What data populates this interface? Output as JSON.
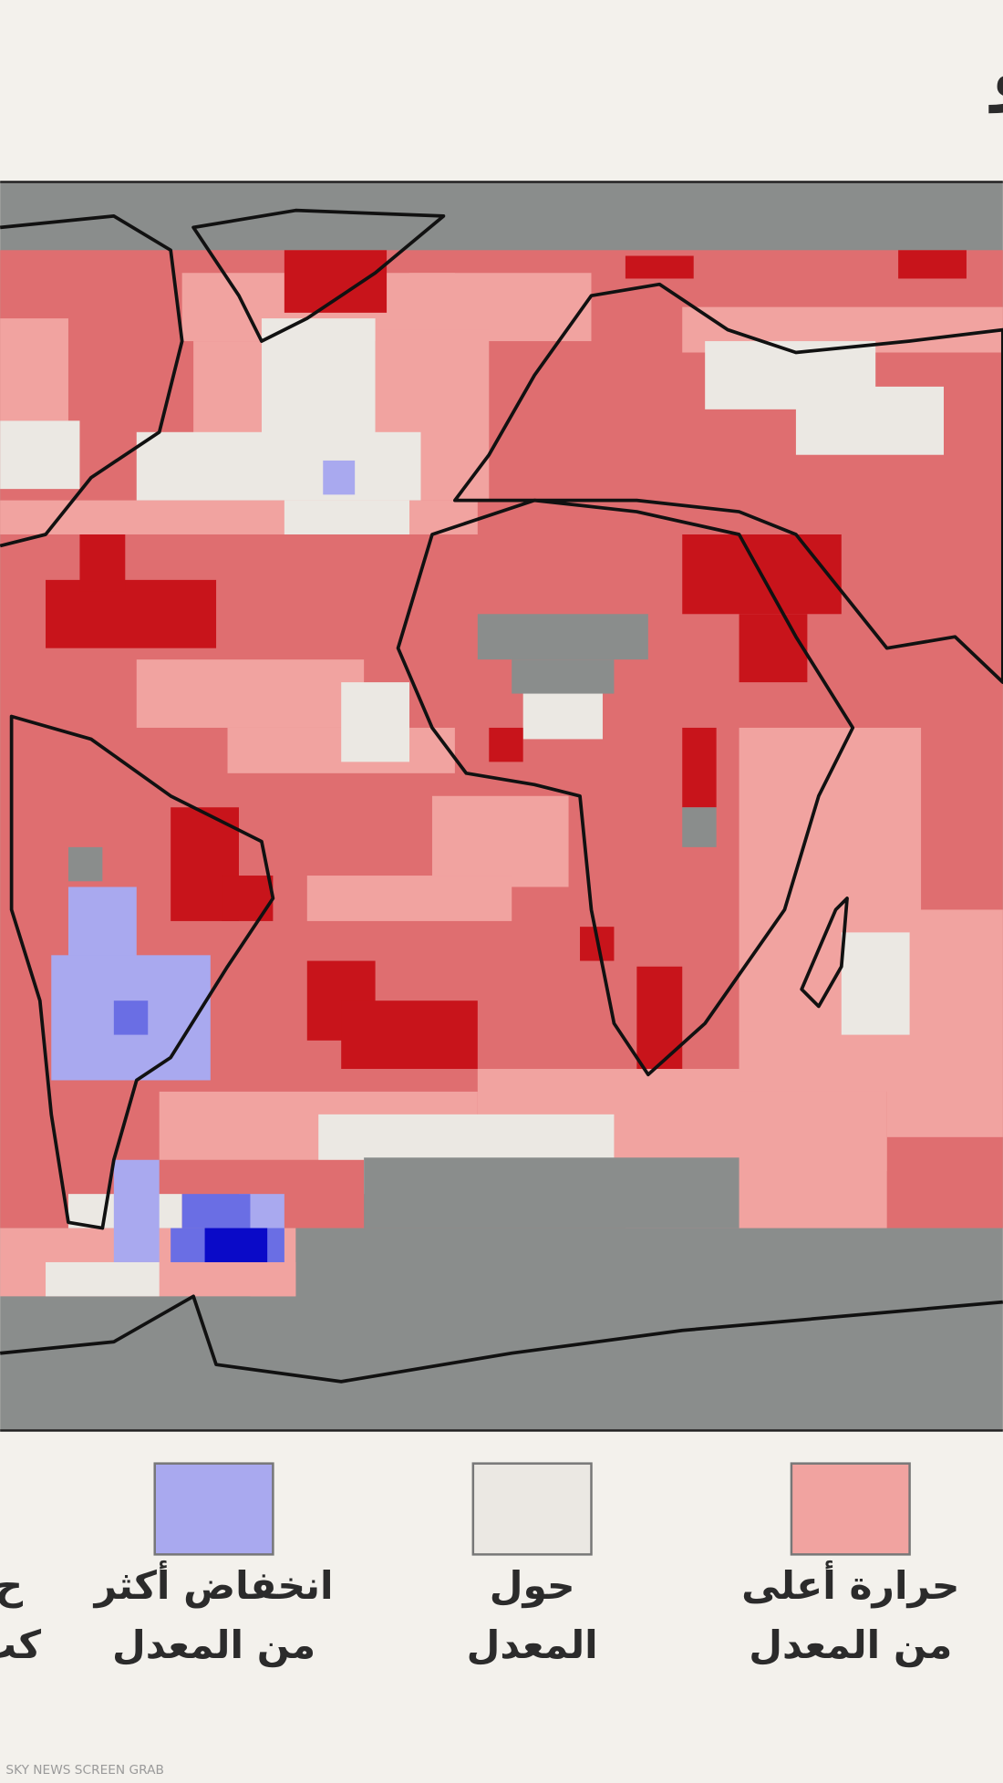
{
  "title": "حرارة البر والبحر خلال يونيو",
  "legend": [
    {
      "color": "#f1a3a0",
      "lines": [
        "حرارة أعلى",
        "من المعدل"
      ]
    },
    {
      "color": "#ebe8e3",
      "lines": [
        "حول",
        "المعدل"
      ]
    },
    {
      "color": "#a9a9ef",
      "lines": [
        "انخفاض أكثر",
        "من المعدل"
      ]
    },
    {
      "lines": [
        "ح",
        "كث"
      ]
    }
  ],
  "watermark": "SKY NEWS SCREEN GRAB"
}
